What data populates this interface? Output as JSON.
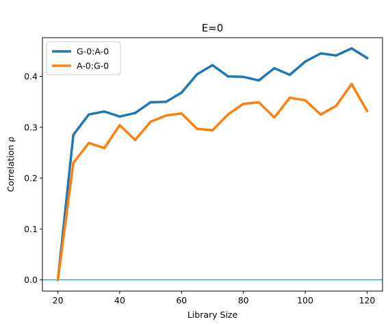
{
  "chart_data": {
    "type": "line",
    "title": "E=0",
    "xlabel": "Library Size",
    "ylabel": "Correlation ρ",
    "xlim": [
      15,
      125
    ],
    "ylim": [
      -0.022,
      0.476
    ],
    "xticks": [
      20,
      40,
      60,
      80,
      100,
      120
    ],
    "xtick_labels": [
      "20",
      "40",
      "60",
      "80",
      "100",
      "120"
    ],
    "yticks": [
      0.0,
      0.1,
      0.2,
      0.3,
      0.4
    ],
    "ytick_labels": [
      "0.0",
      "0.1",
      "0.2",
      "0.3",
      "0.4"
    ],
    "hline": 0.0,
    "hline_color": "#1f77b4",
    "legend_position": "upper left",
    "x": [
      20,
      25,
      30,
      35,
      40,
      45,
      50,
      55,
      60,
      65,
      70,
      75,
      80,
      85,
      90,
      95,
      100,
      105,
      110,
      115,
      120
    ],
    "series": [
      {
        "name": "G-0:A-0",
        "color": "#1f77b4",
        "values": [
          0.0,
          0.285,
          0.325,
          0.331,
          0.321,
          0.328,
          0.349,
          0.35,
          0.368,
          0.404,
          0.422,
          0.4,
          0.399,
          0.392,
          0.416,
          0.403,
          0.429,
          0.445,
          0.441,
          0.455,
          0.436
        ]
      },
      {
        "name": "A-0:G-0",
        "color": "#ff7f0e",
        "values": [
          0.0,
          0.23,
          0.269,
          0.259,
          0.304,
          0.275,
          0.311,
          0.323,
          0.327,
          0.297,
          0.294,
          0.325,
          0.346,
          0.349,
          0.319,
          0.358,
          0.353,
          0.325,
          0.342,
          0.385,
          0.332
        ]
      }
    ]
  }
}
